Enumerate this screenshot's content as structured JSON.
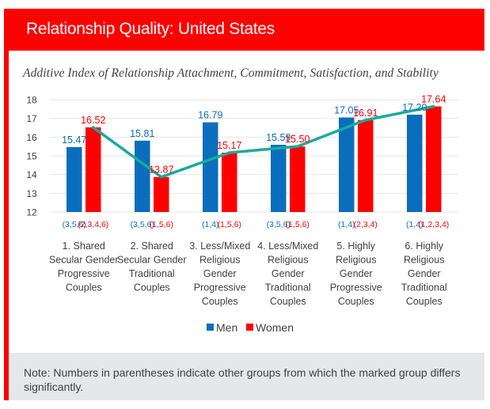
{
  "header": {
    "title": "Relationship Quality: United States"
  },
  "colors": {
    "men": "#0a6ebd",
    "women": "#ff0000",
    "trend": "#1aab9b",
    "frame": "#ff0000",
    "grid": "#e6e6e6",
    "axis_text": "#404040"
  },
  "chart_data": {
    "type": "bar",
    "title": "Additive Index of Relationship Attachment, Commitment, Satisfaction, and Stability",
    "xlabel": "",
    "ylabel": "",
    "ylim": [
      12,
      18
    ],
    "yticks": [
      12,
      13,
      14,
      15,
      16,
      17,
      18
    ],
    "grid": true,
    "legend_position": "bottom-center",
    "categories": [
      [
        "1. Shared",
        "Secular Gender",
        "Progressive",
        "Couples"
      ],
      [
        "2. Shared",
        "Secular Gender",
        "Traditional",
        "Couples"
      ],
      [
        "3. Less/Mixed",
        "Religious",
        "Gender",
        "Progressive",
        "Couples"
      ],
      [
        "4. Less/Mixed",
        "Religious",
        "Gender",
        "Traditional",
        "Couples"
      ],
      [
        "5. Highly",
        "Religious",
        "Gender",
        "Progressive",
        "Couples"
      ],
      [
        "6. Highly",
        "Religious",
        "Gender",
        "Traditional",
        "Couples"
      ]
    ],
    "series": [
      {
        "name": "Men",
        "values": [
          15.47,
          15.81,
          16.79,
          15.59,
          17.05,
          17.2
        ],
        "labels": [
          "15.47",
          "15.81",
          "16.79",
          "15.59",
          "17.05",
          "17.20"
        ],
        "significance": [
          "(3,5,6)",
          "(3,5,6)",
          "(1,4)",
          "(3,5,6)",
          "(1,4)",
          "(1,4)"
        ]
      },
      {
        "name": "Women",
        "values": [
          16.52,
          13.87,
          15.17,
          15.5,
          16.91,
          17.64
        ],
        "labels": [
          "16.52",
          "13.87",
          "15.17",
          "15.50",
          "16.91",
          "17.64"
        ],
        "significance": [
          "(2,3,4,6)",
          "(1,5,6)",
          "(1,5,6)",
          "(1,5,6)",
          "(2,3,4)",
          "(1,2,3,4)"
        ]
      }
    ],
    "trendline": {
      "follows": "Women",
      "values": [
        16.52,
        13.87,
        15.17,
        15.5,
        16.91,
        17.64
      ]
    }
  },
  "legend": {
    "items": [
      "Men",
      "Women"
    ]
  },
  "note": "Note: Numbers in parentheses indicate other groups from which the marked group differs significantly."
}
